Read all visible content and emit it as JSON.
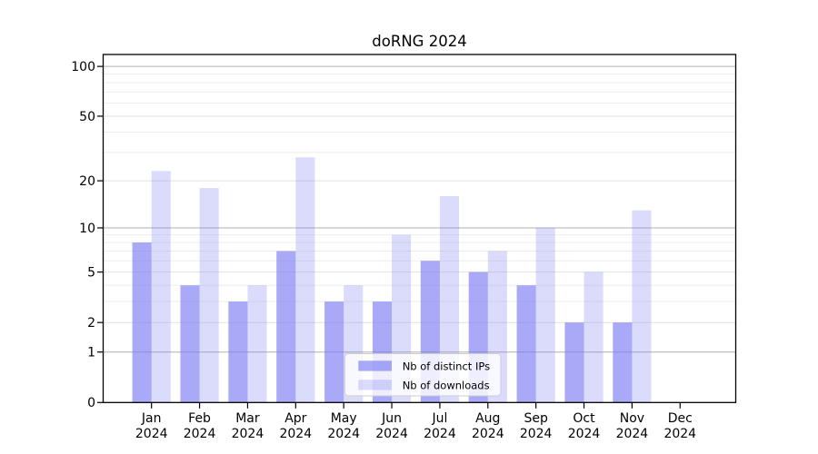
{
  "figure": {
    "background": "#ffffff"
  },
  "chart_data": {
    "type": "bar",
    "title": "doRNG 2024",
    "categories": [
      "Jan",
      "Feb",
      "Mar",
      "Apr",
      "May",
      "Jun",
      "Jul",
      "Aug",
      "Sep",
      "Oct",
      "Nov",
      "Dec"
    ],
    "year_label": "2024",
    "series": [
      {
        "id": "distinct-ips",
        "name": "Nb of distinct IPs",
        "values": [
          8,
          4,
          3,
          7,
          3,
          3,
          6,
          5,
          4,
          2,
          2,
          0
        ],
        "color": "#7c7cf5",
        "fill_opacity": 0.66
      },
      {
        "id": "downloads",
        "name": "Nb of downloads",
        "values": [
          23,
          18,
          4,
          28,
          4,
          9,
          16,
          7,
          10,
          5,
          13,
          0
        ],
        "color": "#7c7cf5",
        "fill_opacity": 0.28
      }
    ],
    "yscale": "log1p",
    "ylim": [
      0,
      118
    ],
    "yticks": [
      0,
      1,
      2,
      5,
      10,
      20,
      50,
      100
    ],
    "gridlines": {
      "decade": {
        "values": [
          1,
          10,
          100
        ],
        "color": "#b0b0b0"
      },
      "mid": {
        "values": [
          2,
          5,
          20,
          50
        ],
        "color": "#e2e2e2"
      },
      "minor": {
        "values": [
          3,
          4,
          6,
          7,
          8,
          9,
          30,
          40,
          60,
          70,
          80,
          90
        ],
        "color": "#ededed"
      }
    },
    "legend": {
      "position": "lower-center",
      "background": "rgba(255,255,255,0.8)",
      "border_color": "#cccccc"
    },
    "axis_color": "#000000",
    "grid": true,
    "legend_entries": [
      "Nb of distinct IPs",
      "Nb of downloads"
    ]
  }
}
